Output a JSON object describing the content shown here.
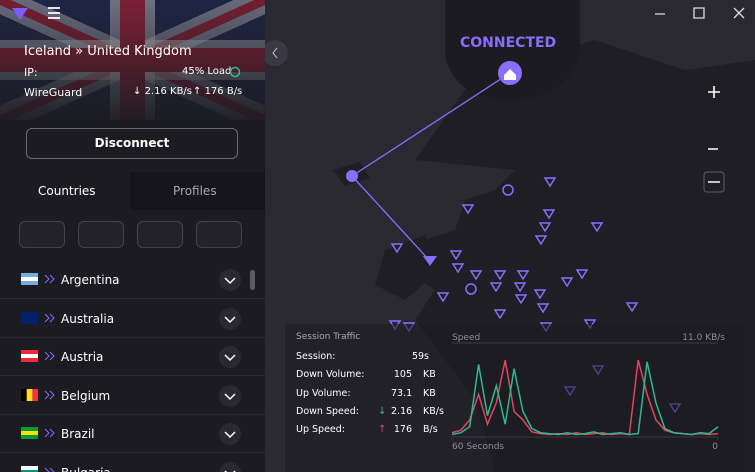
{
  "header": {
    "route": "Iceland » United Kingdom",
    "ip_label": "IP:",
    "load": "45% Load",
    "protocol": "WireGuard",
    "down_speed": "2.16 KB/s",
    "up_speed": "176 B/s"
  },
  "disconnect_button": "Disconnect",
  "tabs": [
    "Countries",
    "Profiles"
  ],
  "countries": [
    "Argentina",
    "Australia",
    "Austria",
    "Belgium",
    "Brazil",
    "Bulgaria"
  ],
  "status": "CONNECTED",
  "session_traffic": {
    "title": "Session Traffic",
    "rows": [
      {
        "label": "Session:",
        "value": "59s"
      },
      {
        "label": "Down Volume:",
        "value": "105",
        "unit": "KB"
      },
      {
        "label": "Up Volume:",
        "value": "73.1",
        "unit": "KB"
      },
      {
        "label": "Down Speed:",
        "value": "2.16",
        "unit": "KB/s"
      },
      {
        "label": "Up Speed:",
        "value": "176",
        "unit": "B/s"
      }
    ]
  },
  "speed_graph": {
    "title": "Speed",
    "ylim": [
      0,
      11
    ],
    "yticks": [
      {
        "value": 11,
        "label": "11.0 KB/s"
      }
    ],
    "xlim": [
      60,
      0
    ],
    "xticks": [
      {
        "value": 60,
        "label": "60 Seconds"
      },
      0
    ],
    "series": [
      {
        "color": "#2fb98c",
        "values": [
          0.3,
          0.5,
          1.2,
          8.5,
          2.5,
          6,
          1.5,
          8,
          3,
          1,
          0.5,
          0.4,
          0.3,
          0.5,
          0.3,
          0.4,
          0.6,
          0.3,
          0.4,
          0.5,
          0.3,
          0.4,
          8.8,
          4,
          1,
          0.5,
          0.4,
          0.3,
          0.5,
          0.4,
          1.2
        ]
      },
      {
        "color": "#e0465e",
        "values": [
          0.5,
          0.8,
          2,
          5,
          1.5,
          4,
          9,
          3,
          2,
          0.6,
          0.4,
          0.3,
          0.4,
          0.3,
          0.5,
          0.3,
          0.4,
          0.5,
          0.3,
          0.4,
          0.3,
          9,
          5,
          2,
          0.8,
          0.5,
          0.4,
          0.3,
          0.4,
          0.3,
          0.4
        ]
      }
    ]
  }
}
